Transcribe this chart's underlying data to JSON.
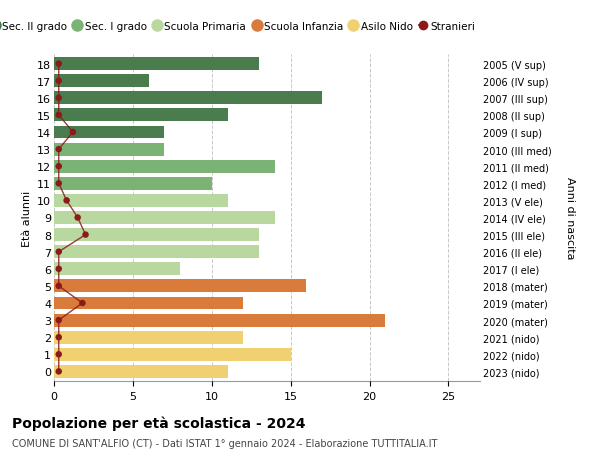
{
  "ages": [
    18,
    17,
    16,
    15,
    14,
    13,
    12,
    11,
    10,
    9,
    8,
    7,
    6,
    5,
    4,
    3,
    2,
    1,
    0
  ],
  "right_labels": [
    "2005 (V sup)",
    "2006 (IV sup)",
    "2007 (III sup)",
    "2008 (II sup)",
    "2009 (I sup)",
    "2010 (III med)",
    "2011 (II med)",
    "2012 (I med)",
    "2013 (V ele)",
    "2014 (IV ele)",
    "2015 (III ele)",
    "2016 (II ele)",
    "2017 (I ele)",
    "2018 (mater)",
    "2019 (mater)",
    "2020 (mater)",
    "2021 (nido)",
    "2022 (nido)",
    "2023 (nido)"
  ],
  "bar_values": [
    13,
    6,
    17,
    11,
    7,
    7,
    14,
    10,
    11,
    14,
    13,
    13,
    8,
    16,
    12,
    21,
    12,
    15,
    11
  ],
  "bar_colors": [
    "#4a7c4e",
    "#4a7c4e",
    "#4a7c4e",
    "#4a7c4e",
    "#4a7c4e",
    "#7ab373",
    "#7ab373",
    "#7ab373",
    "#b8d8a0",
    "#b8d8a0",
    "#b8d8a0",
    "#b8d8a0",
    "#b8d8a0",
    "#d97b3a",
    "#d97b3a",
    "#d97b3a",
    "#f0d070",
    "#f0d070",
    "#f0d070"
  ],
  "stranieri_x": [
    0.3,
    0.3,
    0.3,
    0.3,
    1.2,
    0.3,
    0.3,
    0.3,
    0.8,
    1.5,
    2.0,
    0.3,
    0.3,
    0.3,
    1.8,
    0.3,
    0.3,
    0.3,
    0.3
  ],
  "stranieri_color": "#8b1a1a",
  "title": "Popolazione per età scolastica - 2024",
  "subtitle": "COMUNE DI SANT'ALFIO (CT) - Dati ISTAT 1° gennaio 2024 - Elaborazione TUTTITALIA.IT",
  "xlabel_right": "Anni di nascita",
  "ylabel": "Età alunni",
  "xlim": [
    0,
    27
  ],
  "xticks": [
    0,
    5,
    10,
    15,
    20,
    25
  ],
  "legend_items": [
    {
      "label": "Sec. II grado",
      "color": "#4a7c4e"
    },
    {
      "label": "Sec. I grado",
      "color": "#7ab373"
    },
    {
      "label": "Scuola Primaria",
      "color": "#b8d8a0"
    },
    {
      "label": "Scuola Infanzia",
      "color": "#d97b3a"
    },
    {
      "label": "Asilo Nido",
      "color": "#f0d070"
    },
    {
      "label": "Stranieri",
      "color": "#8b1a1a"
    }
  ],
  "background_color": "#ffffff",
  "grid_color": "#c8c8c8"
}
